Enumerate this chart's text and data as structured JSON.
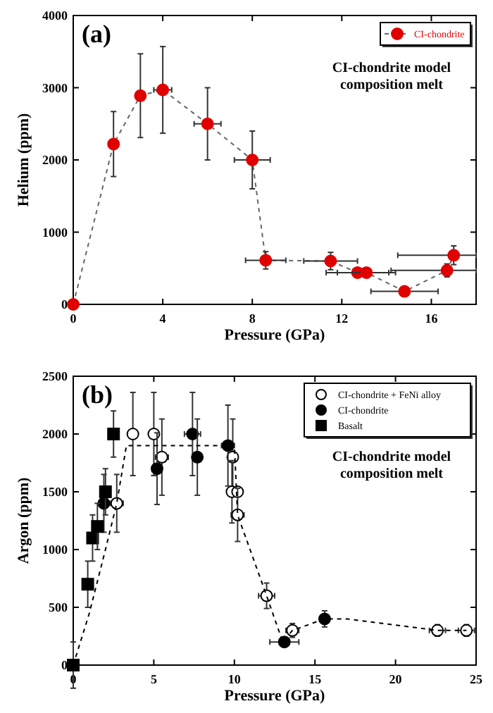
{
  "chart_data": [
    {
      "type": "line",
      "xlabel": "Pressure (GPa)",
      "ylabel": "Helium (ppm)",
      "annotations": [
        "(a)",
        "CI-chondrite model composition melt"
      ],
      "xlim": [
        0,
        18
      ],
      "ylim": [
        0,
        4000
      ],
      "xticks": [
        0,
        4,
        8,
        12,
        16
      ],
      "yticks": [
        0,
        1000,
        2000,
        3000,
        4000
      ],
      "legend": "top right",
      "marker": "circle",
      "line_style": "dashed",
      "series": [
        {
          "name": "CI-chondrite",
          "color": "#e00000",
          "x": [
            0,
            1.8,
            3.0,
            4.0,
            6.0,
            8.0,
            8.6,
            11.5,
            12.7,
            13.1,
            14.8,
            16.7,
            17.0
          ],
          "values": [
            0,
            2220,
            2890,
            2970,
            2500,
            2000,
            610,
            600,
            440,
            440,
            180,
            470,
            680
          ],
          "errors": [
            null,
            450,
            580,
            600,
            500,
            400,
            120,
            120,
            null,
            null,
            null,
            90,
            130
          ],
          "xerrors": [
            null,
            null,
            null,
            0.4,
            0.6,
            0.8,
            0.9,
            1.2,
            1.4,
            1.3,
            1.5,
            [
              14.2,
              18
            ],
            [
              14.5,
              18
            ]
          ]
        }
      ]
    },
    {
      "type": "scatter",
      "xlabel": "Pressure (GPa)",
      "ylabel": "Argon (ppm)",
      "annotations": [
        "(b)",
        "CI-chondrite model composition melt"
      ],
      "xlim": [
        0,
        25
      ],
      "ylim": [
        0,
        2500
      ],
      "xticks": [
        0,
        5,
        10,
        15,
        20,
        25
      ],
      "yticks": [
        0,
        500,
        1000,
        1500,
        2000,
        2500
      ],
      "legend": "top right",
      "series": [
        {
          "name": "CI-chondrite + FeNi alloy",
          "color": "#ffffff",
          "marker": "circle",
          "x": [
            2.7,
            3.7,
            5.0,
            5.5,
            9.9,
            9.85,
            10.2,
            10.2,
            12.0,
            13.6,
            22.6,
            24.4
          ],
          "values": [
            1400,
            2000,
            2000,
            1800,
            1800,
            1500,
            1500,
            1300,
            600,
            300,
            300,
            300
          ],
          "errors": [
            250,
            360,
            360,
            330,
            330,
            270,
            null,
            230,
            110,
            60,
            50,
            50
          ],
          "xerrors": [
            0.4,
            null,
            null,
            0.4,
            0.3,
            0.3,
            0.3,
            0.4,
            0.5,
            0.4,
            0.5,
            0.5
          ]
        },
        {
          "name": "CI-chondrite",
          "color": "#000000",
          "marker": "circle",
          "x": [
            1.9,
            5.2,
            7.4,
            7.7,
            9.6,
            13.1,
            15.6
          ],
          "values": [
            1400,
            1700,
            2000,
            1800,
            1900,
            200,
            400
          ],
          "errors": [
            250,
            310,
            360,
            330,
            350,
            null,
            70
          ],
          "xerrors": [
            null,
            0.3,
            0.5,
            null,
            0.4,
            0.9,
            null
          ]
        },
        {
          "name": "Basalt",
          "color": "#000000",
          "marker": "square",
          "x": [
            0,
            0.9,
            1.2,
            1.5,
            2.0,
            2.5
          ],
          "values": [
            0,
            700,
            1100,
            1200,
            1500,
            2000
          ],
          "errors": [
            200,
            200,
            200,
            200,
            200,
            200
          ]
        },
        {
          "type": "line",
          "color": "#000000",
          "line_style": "dashed",
          "marker": "none",
          "x": [
            0,
            1,
            2,
            2.7,
            3.3,
            10,
            10.2,
            12,
            13,
            13.6,
            15.6,
            17,
            22.6,
            24.4
          ],
          "values": [
            0,
            450,
            1000,
            1400,
            1900,
            1900,
            1300,
            600,
            200,
            300,
            400,
            400,
            300,
            300
          ]
        }
      ]
    }
  ]
}
